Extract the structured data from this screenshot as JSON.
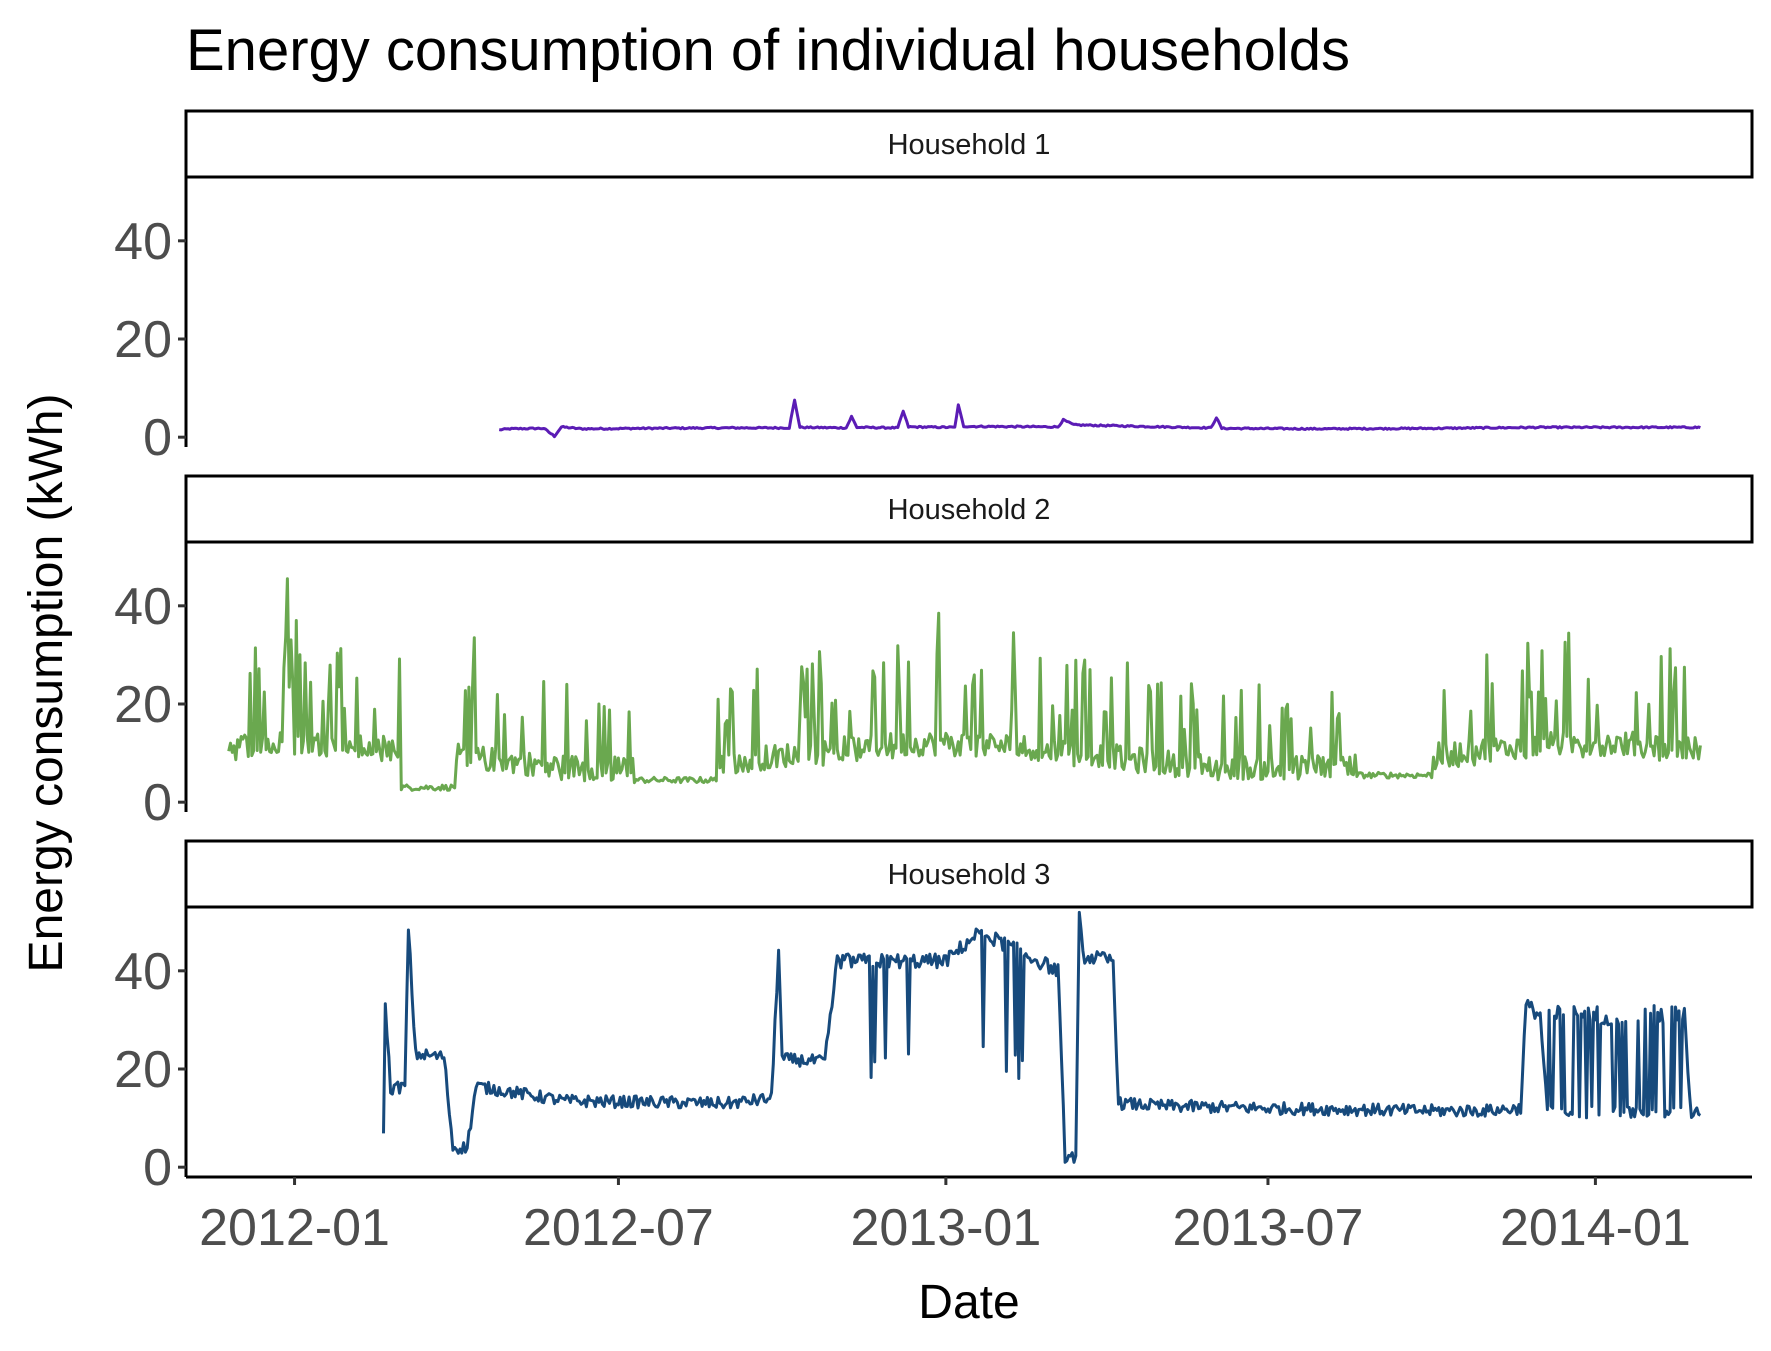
{
  "chart_data": {
    "type": "line",
    "title": "Energy consumption of individual households",
    "xlabel": "Date",
    "ylabel": "Energy consumption (kWh)",
    "x_ticks": [
      "2012-01",
      "2012-07",
      "2013-01",
      "2013-07",
      "2014-01"
    ],
    "y_ticks": [
      0,
      20,
      40
    ],
    "ylim": [
      -2,
      53
    ],
    "xlim": [
      "2011-11-01",
      "2014-03-30"
    ],
    "grid": false,
    "legend": "none",
    "panels": [
      {
        "label": "Household 1",
        "color": "#5b1cb5",
        "x_range": [
          "2012-04-25",
          "2014-03-01"
        ],
        "base_level": 1.9,
        "points": [
          [
            "2012-04-25",
            1.5
          ],
          [
            "2012-05-01",
            1.7
          ],
          [
            "2012-05-20",
            1.8
          ],
          [
            "2012-05-26",
            0.2
          ],
          [
            "2012-05-30",
            2.1
          ],
          [
            "2012-06-10",
            1.7
          ],
          [
            "2012-07-15",
            1.8
          ],
          [
            "2012-09-01",
            1.9
          ],
          [
            "2012-10-05",
            1.9
          ],
          [
            "2012-10-08",
            7.5
          ],
          [
            "2012-10-11",
            2.0
          ],
          [
            "2012-11-06",
            1.9
          ],
          [
            "2012-11-09",
            4.2
          ],
          [
            "2012-11-12",
            2.0
          ],
          [
            "2012-12-05",
            1.9
          ],
          [
            "2012-12-08",
            5.3
          ],
          [
            "2012-12-11",
            2.1
          ],
          [
            "2013-01-06",
            2.0
          ],
          [
            "2013-01-08",
            6.5
          ],
          [
            "2013-01-11",
            2.2
          ],
          [
            "2013-03-05",
            2.1
          ],
          [
            "2013-03-08",
            3.5
          ],
          [
            "2013-03-14",
            2.5
          ],
          [
            "2013-05-30",
            1.9
          ],
          [
            "2013-06-02",
            4.0
          ],
          [
            "2013-06-05",
            1.8
          ],
          [
            "2013-08-01",
            1.7
          ],
          [
            "2013-10-01",
            1.8
          ],
          [
            "2013-12-01",
            2.0
          ],
          [
            "2014-03-01",
            2.0
          ]
        ]
      },
      {
        "label": "Household 2",
        "color": "#6aa84f",
        "x_range": [
          "2011-11-25",
          "2014-03-01"
        ],
        "peaks": [
          [
            "2011-12-28",
            45.5
          ],
          [
            "2012-01-02",
            37
          ],
          [
            "2012-04-11",
            33.5
          ],
          [
            "2012-12-28",
            38.5
          ],
          [
            "2013-02-08",
            34.5
          ],
          [
            "2013-11-01",
            30
          ],
          [
            "2014-02-20",
            27.5
          ]
        ],
        "quiet_periods": [
          {
            "start": "2012-03-01",
            "end": "2012-03-31",
            "level": 3
          },
          {
            "start": "2012-07-10",
            "end": "2012-08-25",
            "level": 4.5
          },
          {
            "start": "2013-08-20",
            "end": "2013-10-01",
            "level": 5.5
          }
        ]
      },
      {
        "label": "Household 3",
        "color": "#174a7c",
        "x_range": [
          "2012-02-20",
          "2014-03-01"
        ],
        "points": [
          [
            "2012-02-20",
            8
          ],
          [
            "2012-02-21",
            32.5
          ],
          [
            "2012-02-24",
            16
          ],
          [
            "2012-03-03",
            16.5
          ],
          [
            "2012-03-05",
            48.5
          ],
          [
            "2012-03-09",
            23
          ],
          [
            "2012-03-25",
            22.5
          ],
          [
            "2012-03-30",
            4
          ],
          [
            "2012-04-07",
            4
          ],
          [
            "2012-04-12",
            16.5
          ],
          [
            "2012-06-01",
            13.5
          ],
          [
            "2012-09-01",
            13
          ],
          [
            "2012-09-25",
            14
          ],
          [
            "2012-09-29",
            44.5
          ],
          [
            "2012-10-01",
            22
          ],
          [
            "2012-10-25",
            21.5
          ],
          [
            "2012-11-01",
            42
          ],
          [
            "2013-01-01",
            42
          ],
          [
            "2013-01-20",
            48
          ],
          [
            "2013-03-05",
            40
          ],
          [
            "2013-03-09",
            2
          ],
          [
            "2013-03-15",
            2
          ],
          [
            "2013-03-17",
            51
          ],
          [
            "2013-03-19",
            43
          ],
          [
            "2013-04-05",
            42
          ],
          [
            "2013-04-08",
            13
          ],
          [
            "2013-05-01",
            12.5
          ],
          [
            "2013-07-01",
            12
          ],
          [
            "2013-10-01",
            11.5
          ],
          [
            "2013-11-01",
            11.5
          ],
          [
            "2013-11-20",
            12
          ],
          [
            "2013-11-23",
            33
          ],
          [
            "2013-12-01",
            31
          ],
          [
            "2013-12-05",
            11.5
          ],
          [
            "2014-01-01",
            32
          ],
          [
            "2014-01-20",
            33.5
          ],
          [
            "2014-02-20",
            31
          ],
          [
            "2014-02-24",
            10
          ],
          [
            "2014-03-01",
            11.5
          ]
        ]
      }
    ]
  }
}
